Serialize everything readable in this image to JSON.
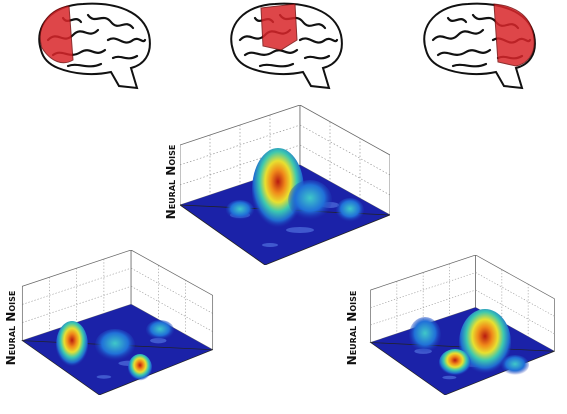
{
  "plots": [
    {
      "ylabel": "Neural Noise"
    },
    {
      "ylabel": "Neural Noise"
    },
    {
      "ylabel": "Neural Noise"
    }
  ]
}
